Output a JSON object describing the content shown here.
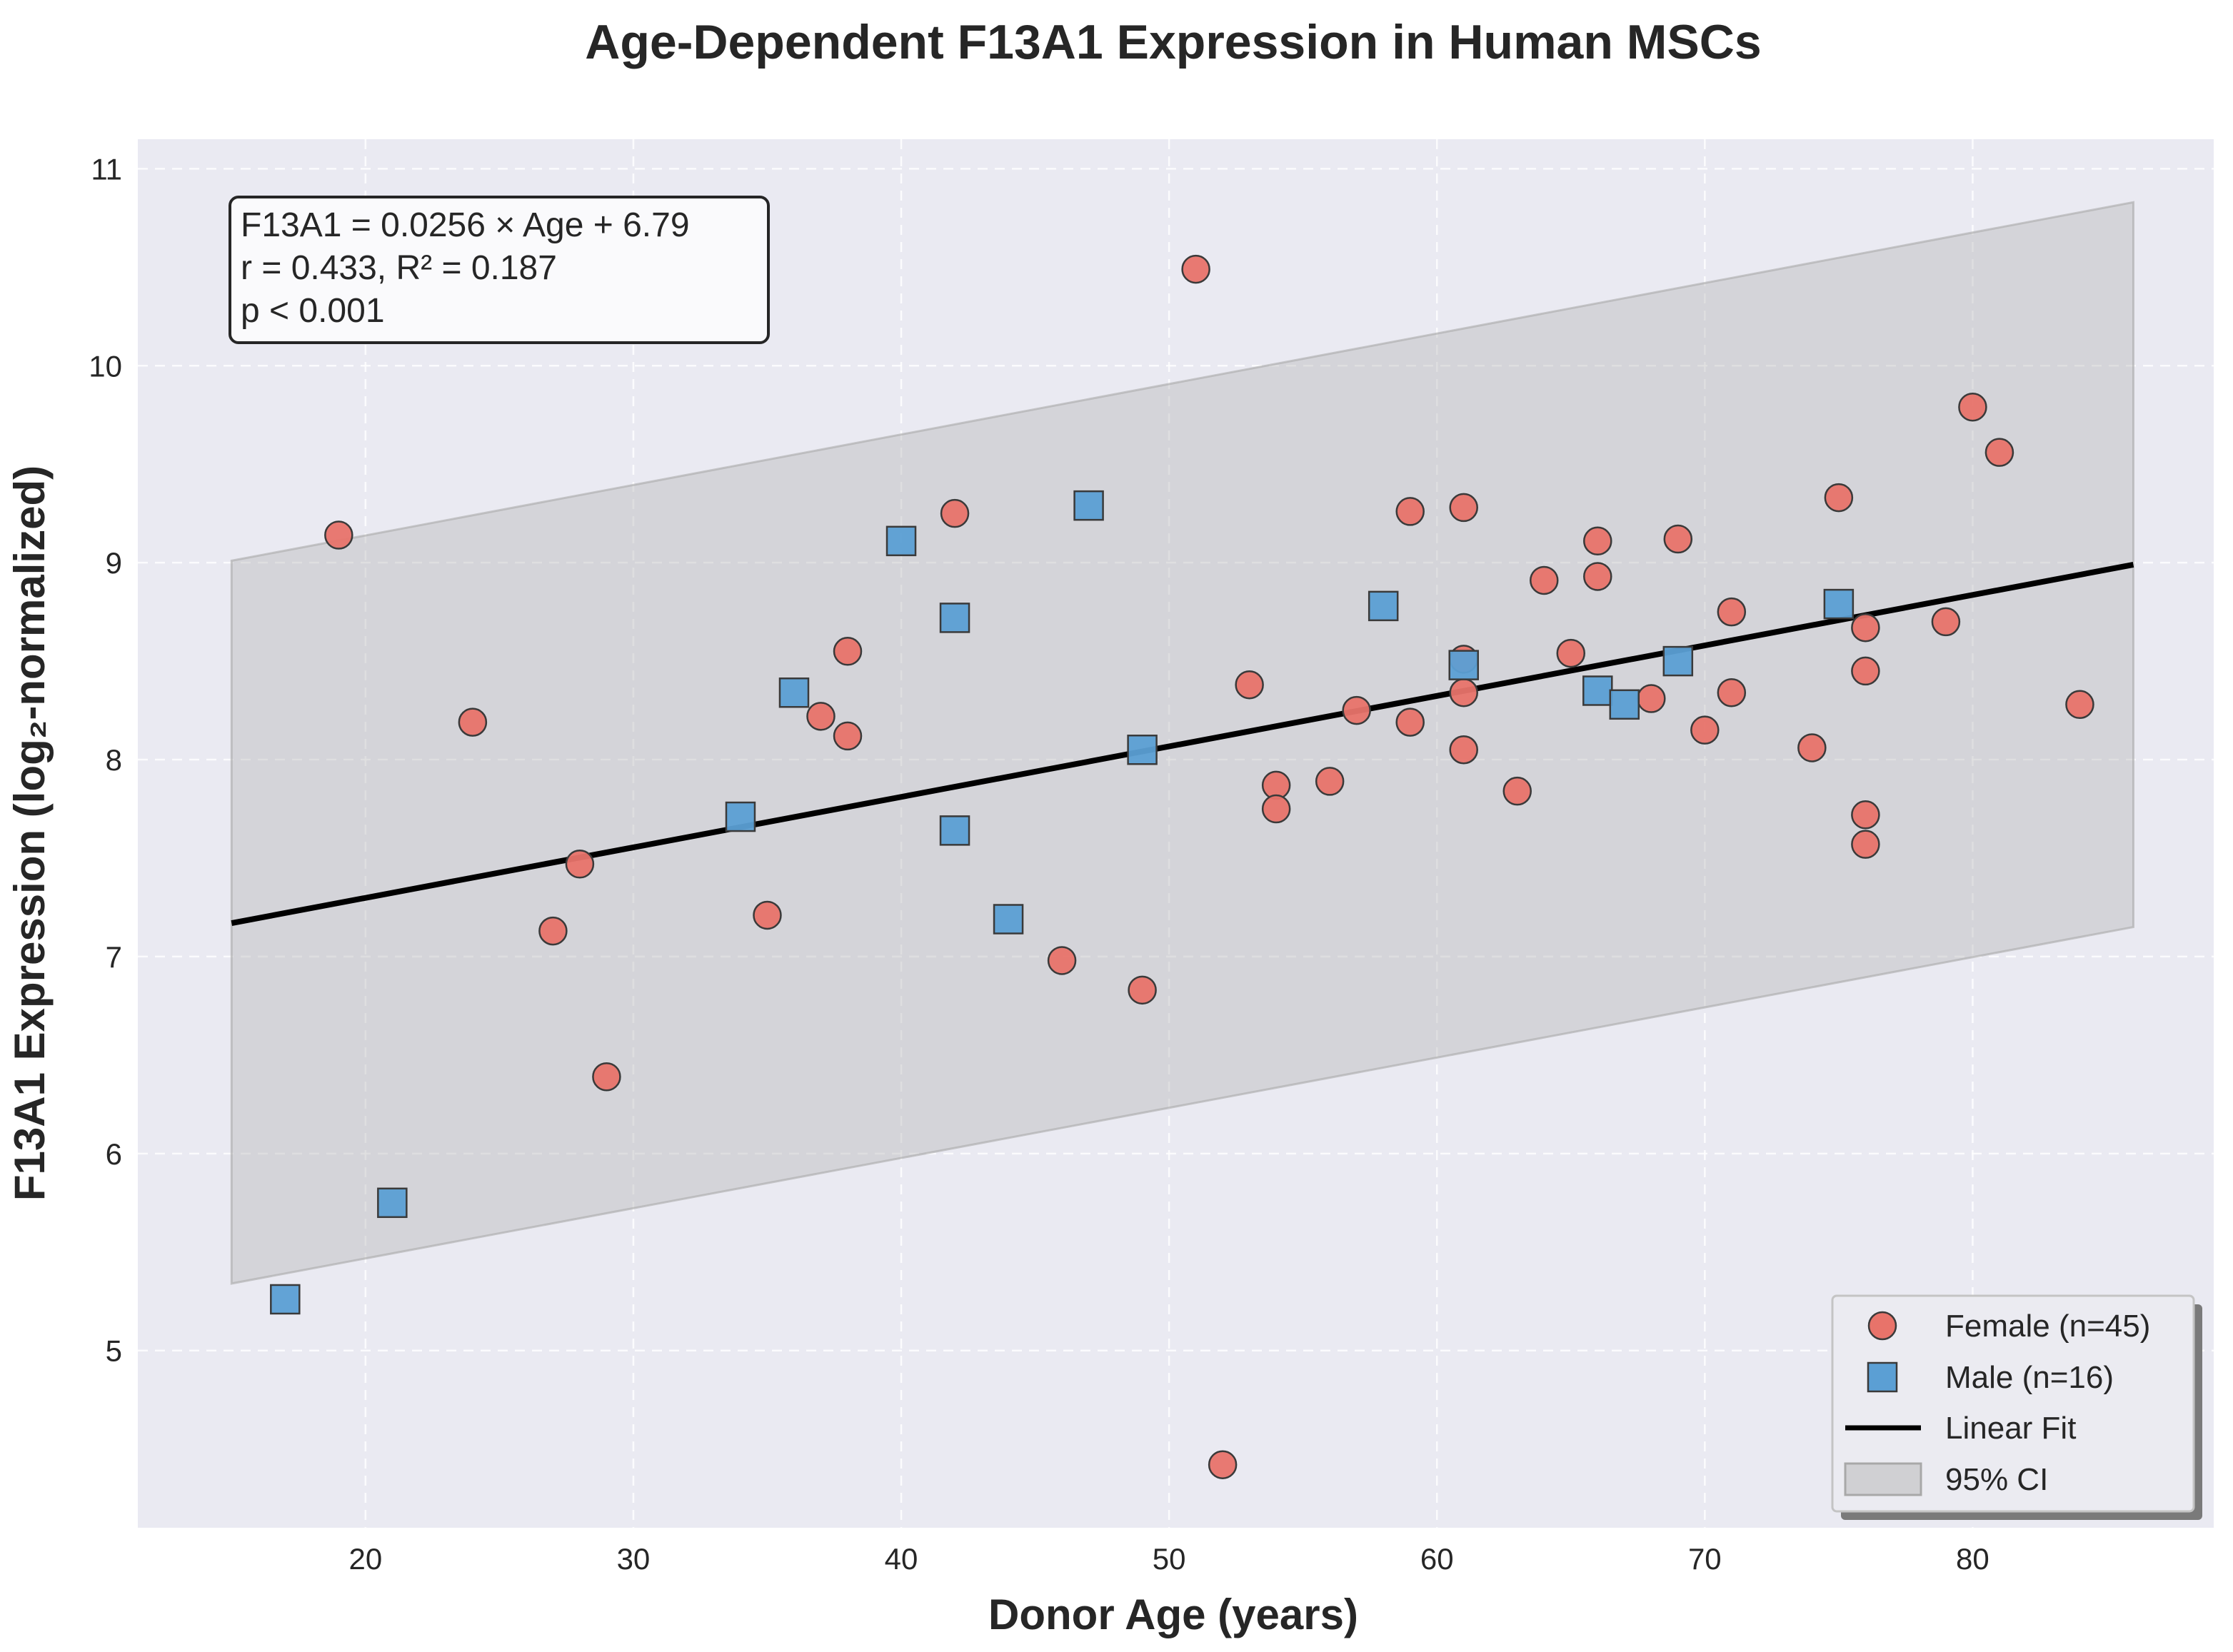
{
  "chart_data": {
    "type": "scatter",
    "title": "Age-Dependent F13A1 Expression in Human MSCs",
    "xlabel": "Donor Age (years)",
    "ylabel": "F13A1 Expression (log₂-normalized)",
    "xlim": [
      11.5,
      89
    ],
    "ylim": [
      4.1,
      11.15
    ],
    "xticks": [
      20,
      30,
      40,
      50,
      60,
      70,
      80
    ],
    "yticks": [
      5,
      6,
      7,
      8,
      9,
      10,
      11
    ],
    "grid": true,
    "legend_position": "bottom-right",
    "annotation": [
      "F13A1 = 0.0256 × Age + 6.79",
      "r = 0.433, R² = 0.187",
      "p < 0.001"
    ],
    "fit": {
      "name": "Linear Fit",
      "x_range": [
        15,
        86
      ],
      "y_start": 7.17,
      "y_end": 8.99,
      "color": "#000000"
    },
    "ci": {
      "name": "95% CI",
      "x_range": [
        15,
        86
      ],
      "upper": [
        9.01,
        10.83
      ],
      "lower": [
        5.34,
        7.15
      ],
      "color": "#b0b0b0"
    },
    "series": [
      {
        "name": "Female (n=45)",
        "marker": "circle",
        "color": "#e8736a",
        "points": [
          [
            19,
            9.14
          ],
          [
            24,
            8.19
          ],
          [
            27,
            7.13
          ],
          [
            28,
            7.47
          ],
          [
            29,
            6.39
          ],
          [
            35,
            7.21
          ],
          [
            37,
            8.22
          ],
          [
            38,
            8.55
          ],
          [
            38,
            8.12
          ],
          [
            42,
            9.25
          ],
          [
            46,
            6.98
          ],
          [
            49,
            6.83
          ],
          [
            51,
            10.49
          ],
          [
            52,
            4.42
          ],
          [
            53,
            8.38
          ],
          [
            54,
            7.87
          ],
          [
            54,
            7.75
          ],
          [
            56,
            7.89
          ],
          [
            57,
            8.25
          ],
          [
            59,
            9.26
          ],
          [
            59,
            8.19
          ],
          [
            61,
            9.28
          ],
          [
            61,
            8.51
          ],
          [
            61,
            8.34
          ],
          [
            61,
            8.05
          ],
          [
            63,
            7.84
          ],
          [
            64,
            8.91
          ],
          [
            65,
            8.54
          ],
          [
            66,
            9.11
          ],
          [
            66,
            8.93
          ],
          [
            68,
            8.31
          ],
          [
            69,
            9.12
          ],
          [
            70,
            8.15
          ],
          [
            71,
            8.75
          ],
          [
            71,
            8.34
          ],
          [
            74,
            8.06
          ],
          [
            75,
            9.33
          ],
          [
            76,
            8.67
          ],
          [
            76,
            8.45
          ],
          [
            76,
            7.72
          ],
          [
            76,
            7.57
          ],
          [
            79,
            8.7
          ],
          [
            80,
            9.79
          ],
          [
            81,
            9.56
          ],
          [
            84,
            8.28
          ]
        ]
      },
      {
        "name": "Male (n=16)",
        "marker": "square",
        "color": "#5b9fd4",
        "points": [
          [
            17,
            5.26
          ],
          [
            21,
            5.75
          ],
          [
            34,
            7.71
          ],
          [
            36,
            8.34
          ],
          [
            40,
            9.11
          ],
          [
            42,
            8.72
          ],
          [
            42,
            7.64
          ],
          [
            44,
            7.19
          ],
          [
            47,
            9.29
          ],
          [
            49,
            8.05
          ],
          [
            58,
            8.78
          ],
          [
            61,
            8.48
          ],
          [
            66,
            8.35
          ],
          [
            67,
            8.28
          ],
          [
            69,
            8.5
          ],
          [
            75,
            8.79
          ]
        ]
      }
    ]
  }
}
